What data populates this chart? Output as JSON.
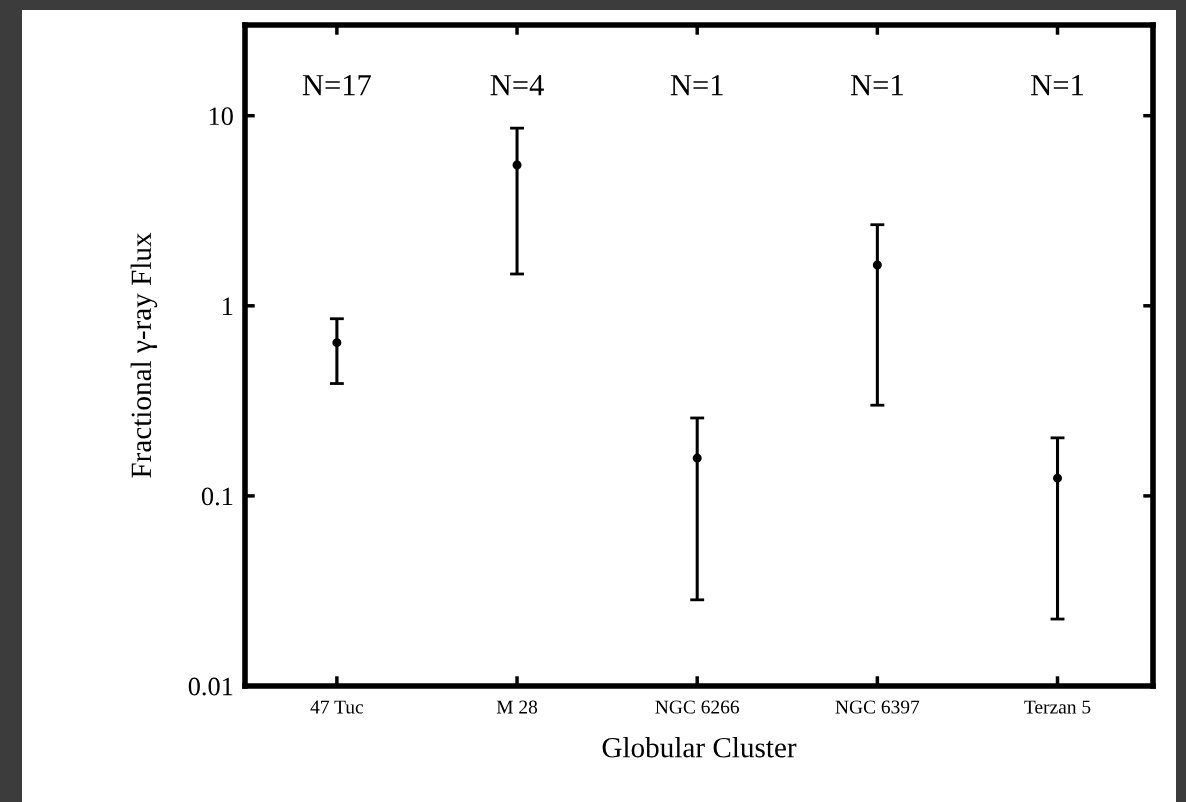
{
  "chart_data": {
    "type": "scatter",
    "xlabel": "Globular Cluster",
    "ylabel": "Fractional γ-ray Flux",
    "categories": [
      "47 Tuc",
      "M 28",
      "NGC 6266",
      "NGC 6397",
      "Terzan 5"
    ],
    "values": [
      0.64,
      5.5,
      0.158,
      1.64,
      0.124
    ],
    "errors": [
      [
        0.39,
        0.855
      ],
      [
        1.47,
        8.6
      ],
      [
        0.0284,
        0.257
      ],
      [
        0.3,
        2.67
      ],
      [
        0.0225,
        0.202
      ]
    ],
    "color": "#000000",
    "log": "y",
    "ylim": [
      0.01,
      30
    ],
    "yticks": [
      0.01,
      0.1,
      1,
      10
    ],
    "marker": "circle",
    "grid": false,
    "legend": false,
    "annotations": [
      "N=17",
      "N=4",
      "N=1",
      "N=1",
      "N=1"
    ]
  }
}
